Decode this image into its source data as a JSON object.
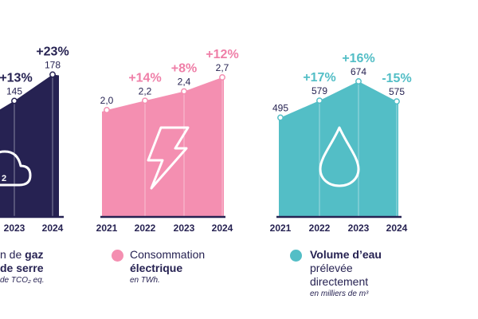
{
  "colors": {
    "navy": "#262252",
    "pink": "#f48fb1",
    "pink_text": "#ef7fa8",
    "teal": "#53bec6",
    "label": "#262252"
  },
  "chart_data": [
    {
      "type": "area",
      "color": "#262252",
      "categories": [
        "2023",
        "2024"
      ],
      "values": [
        145,
        178
      ],
      "value_labels": [
        "145",
        "178"
      ],
      "growth_labels": [
        "+13%",
        "+23%"
      ],
      "icon": "cloud-icon",
      "legend": {
        "line1": "n de ",
        "line1_bold": "gaz",
        "line2": "de serre",
        "unit": "de TCO₂ eq."
      }
    },
    {
      "type": "area",
      "color": "#f48fb1",
      "categories": [
        "2021",
        "2022",
        "2023",
        "2024"
      ],
      "values": [
        2.0,
        2.2,
        2.4,
        2.7
      ],
      "value_labels": [
        "2,0",
        "2,2",
        "2,4",
        "2,7"
      ],
      "growth_labels": [
        "",
        "+14%",
        "+8%",
        "+12%"
      ],
      "icon": "lightning-icon",
      "legend": {
        "line1": "Consommation",
        "line2": "électrique",
        "unit": "en TWh."
      }
    },
    {
      "type": "area",
      "color": "#53bec6",
      "categories": [
        "2021",
        "2022",
        "2023",
        "2024"
      ],
      "values": [
        495,
        579,
        674,
        575
      ],
      "value_labels": [
        "495",
        "579",
        "674",
        "575"
      ],
      "growth_labels": [
        "",
        "+17%",
        "+16%",
        "-15%"
      ],
      "icon": "water-drop-icon",
      "legend": {
        "line1": "Volume d’eau",
        "line2": "prélevée",
        "line3": "directement",
        "unit": "en milliers de m³"
      }
    }
  ]
}
